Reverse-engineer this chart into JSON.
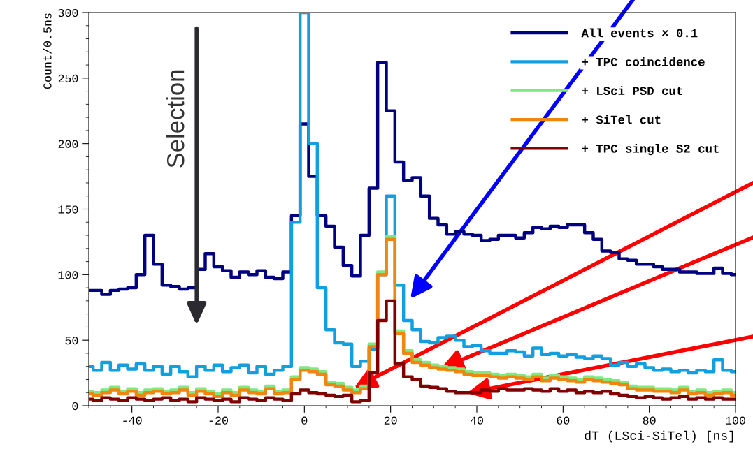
{
  "chart_data": {
    "type": "step",
    "xlabel": "dT (LSci-SiTel) [ns]",
    "ylabel": "Count/0.5ns",
    "x": [
      -50,
      -48,
      -46,
      -44,
      -42,
      -40,
      -38,
      -36,
      -34,
      -32,
      -30,
      -28,
      -26,
      -24,
      -22,
      -20,
      -18,
      -16,
      -14,
      -12,
      -10,
      -8,
      -6,
      -4,
      -2,
      0,
      2,
      4,
      6,
      8,
      10,
      12,
      14,
      16,
      18,
      20,
      22,
      24,
      26,
      28,
      30,
      32,
      34,
      36,
      38,
      40,
      42,
      44,
      46,
      48,
      50,
      52,
      54,
      56,
      58,
      60,
      62,
      64,
      66,
      68,
      70,
      72,
      74,
      76,
      78,
      80,
      82,
      84,
      86,
      88,
      90,
      92,
      94,
      96,
      98,
      100
    ],
    "series": [
      {
        "name": "All events × 0.1",
        "color": "#000080",
        "values": [
          88,
          88,
          85,
          88,
          89,
          90,
          100,
          130,
          108,
          92,
          91,
          89,
          90,
          104,
          116,
          106,
          103,
          98,
          102,
          100,
          103,
          98,
          97,
          102,
          145,
          215,
          175,
          145,
          137,
          121,
          107,
          99,
          130,
          166,
          262,
          225,
          186,
          172,
          174,
          160,
          143,
          138,
          131,
          133,
          131,
          130,
          126,
          127,
          130,
          130,
          128,
          132,
          136,
          135,
          137,
          136,
          138,
          138,
          132,
          127,
          118,
          117,
          112,
          111,
          108,
          108,
          106,
          104,
          104,
          102,
          102,
          101,
          101,
          105,
          101,
          100
        ]
      },
      {
        "name": "+ TPC coincidence",
        "color": "#119fe0",
        "values": [
          30,
          27,
          33,
          27,
          31,
          28,
          32,
          27,
          30,
          24,
          30,
          26,
          22,
          30,
          27,
          31,
          26,
          29,
          31,
          25,
          30,
          24,
          27,
          30,
          140,
          300,
          200,
          90,
          58,
          48,
          47,
          30,
          34,
          43,
          100,
          160,
          92,
          65,
          58,
          49,
          48,
          52,
          53,
          50,
          45,
          46,
          42,
          40,
          40,
          42,
          41,
          38,
          44,
          39,
          40,
          38,
          39,
          37,
          36,
          38,
          36,
          31,
          33,
          30,
          32,
          29,
          27,
          28,
          26,
          27,
          25,
          27,
          26,
          35,
          27,
          26
        ]
      },
      {
        "name": "+ LSci PSD cut",
        "color": "#80e880",
        "values": [
          11,
          10,
          12,
          14,
          11,
          13,
          10,
          12,
          13,
          11,
          12,
          14,
          10,
          13,
          11,
          9,
          12,
          10,
          14,
          12,
          11,
          15,
          11,
          12,
          22,
          29,
          28,
          26,
          18,
          17,
          14,
          12,
          15,
          47,
          102,
          129,
          57,
          42,
          35,
          33,
          31,
          30,
          29,
          28,
          26,
          25,
          25,
          24,
          23,
          24,
          23,
          22,
          24,
          21,
          23,
          22,
          21,
          20,
          22,
          21,
          20,
          19,
          18,
          15,
          14,
          14,
          13,
          13,
          12,
          14,
          11,
          12,
          10,
          11,
          12,
          10
        ]
      },
      {
        "name": "+ SiTel cut",
        "color": "#f0850f",
        "values": [
          9,
          8,
          10,
          12,
          9,
          11,
          8,
          10,
          11,
          9,
          10,
          12,
          8,
          11,
          9,
          7,
          10,
          8,
          12,
          10,
          9,
          13,
          9,
          10,
          20,
          27,
          26,
          24,
          16,
          15,
          12,
          10,
          13,
          45,
          100,
          127,
          55,
          40,
          33,
          31,
          29,
          28,
          27,
          26,
          24,
          23,
          23,
          22,
          21,
          22,
          21,
          20,
          22,
          19,
          21,
          20,
          19,
          18,
          20,
          19,
          18,
          17,
          16,
          13,
          12,
          12,
          11,
          11,
          10,
          12,
          9,
          10,
          8,
          9,
          10,
          8
        ]
      },
      {
        "name": "+ TPC single S2 cut",
        "color": "#800000",
        "values": [
          5,
          4,
          6,
          5,
          4,
          6,
          5,
          4,
          5,
          6,
          4,
          5,
          3,
          6,
          5,
          4,
          5,
          3,
          6,
          5,
          4,
          6,
          5,
          4,
          9,
          12,
          10,
          9,
          8,
          7,
          8,
          3,
          4,
          25,
          65,
          80,
          32,
          22,
          20,
          15,
          14,
          13,
          11,
          10,
          10,
          10,
          12,
          11,
          13,
          12,
          12,
          13,
          12,
          11,
          13,
          11,
          12,
          10,
          11,
          10,
          11,
          9,
          8,
          7,
          6,
          7,
          6,
          5,
          6,
          7,
          5,
          6,
          5,
          6,
          5,
          5
        ]
      }
    ],
    "xlim": [
      -50,
      100
    ],
    "xticks": [
      -40,
      -20,
      0,
      20,
      40,
      60,
      80,
      100
    ],
    "ylim": [
      0,
      300
    ],
    "yticks": [
      0,
      50,
      100,
      150,
      200,
      250,
      300
    ],
    "grid": false,
    "legend": "top right",
    "marker": "none",
    "line_style": "solid",
    "annotations": [
      "Selection"
    ]
  }
}
